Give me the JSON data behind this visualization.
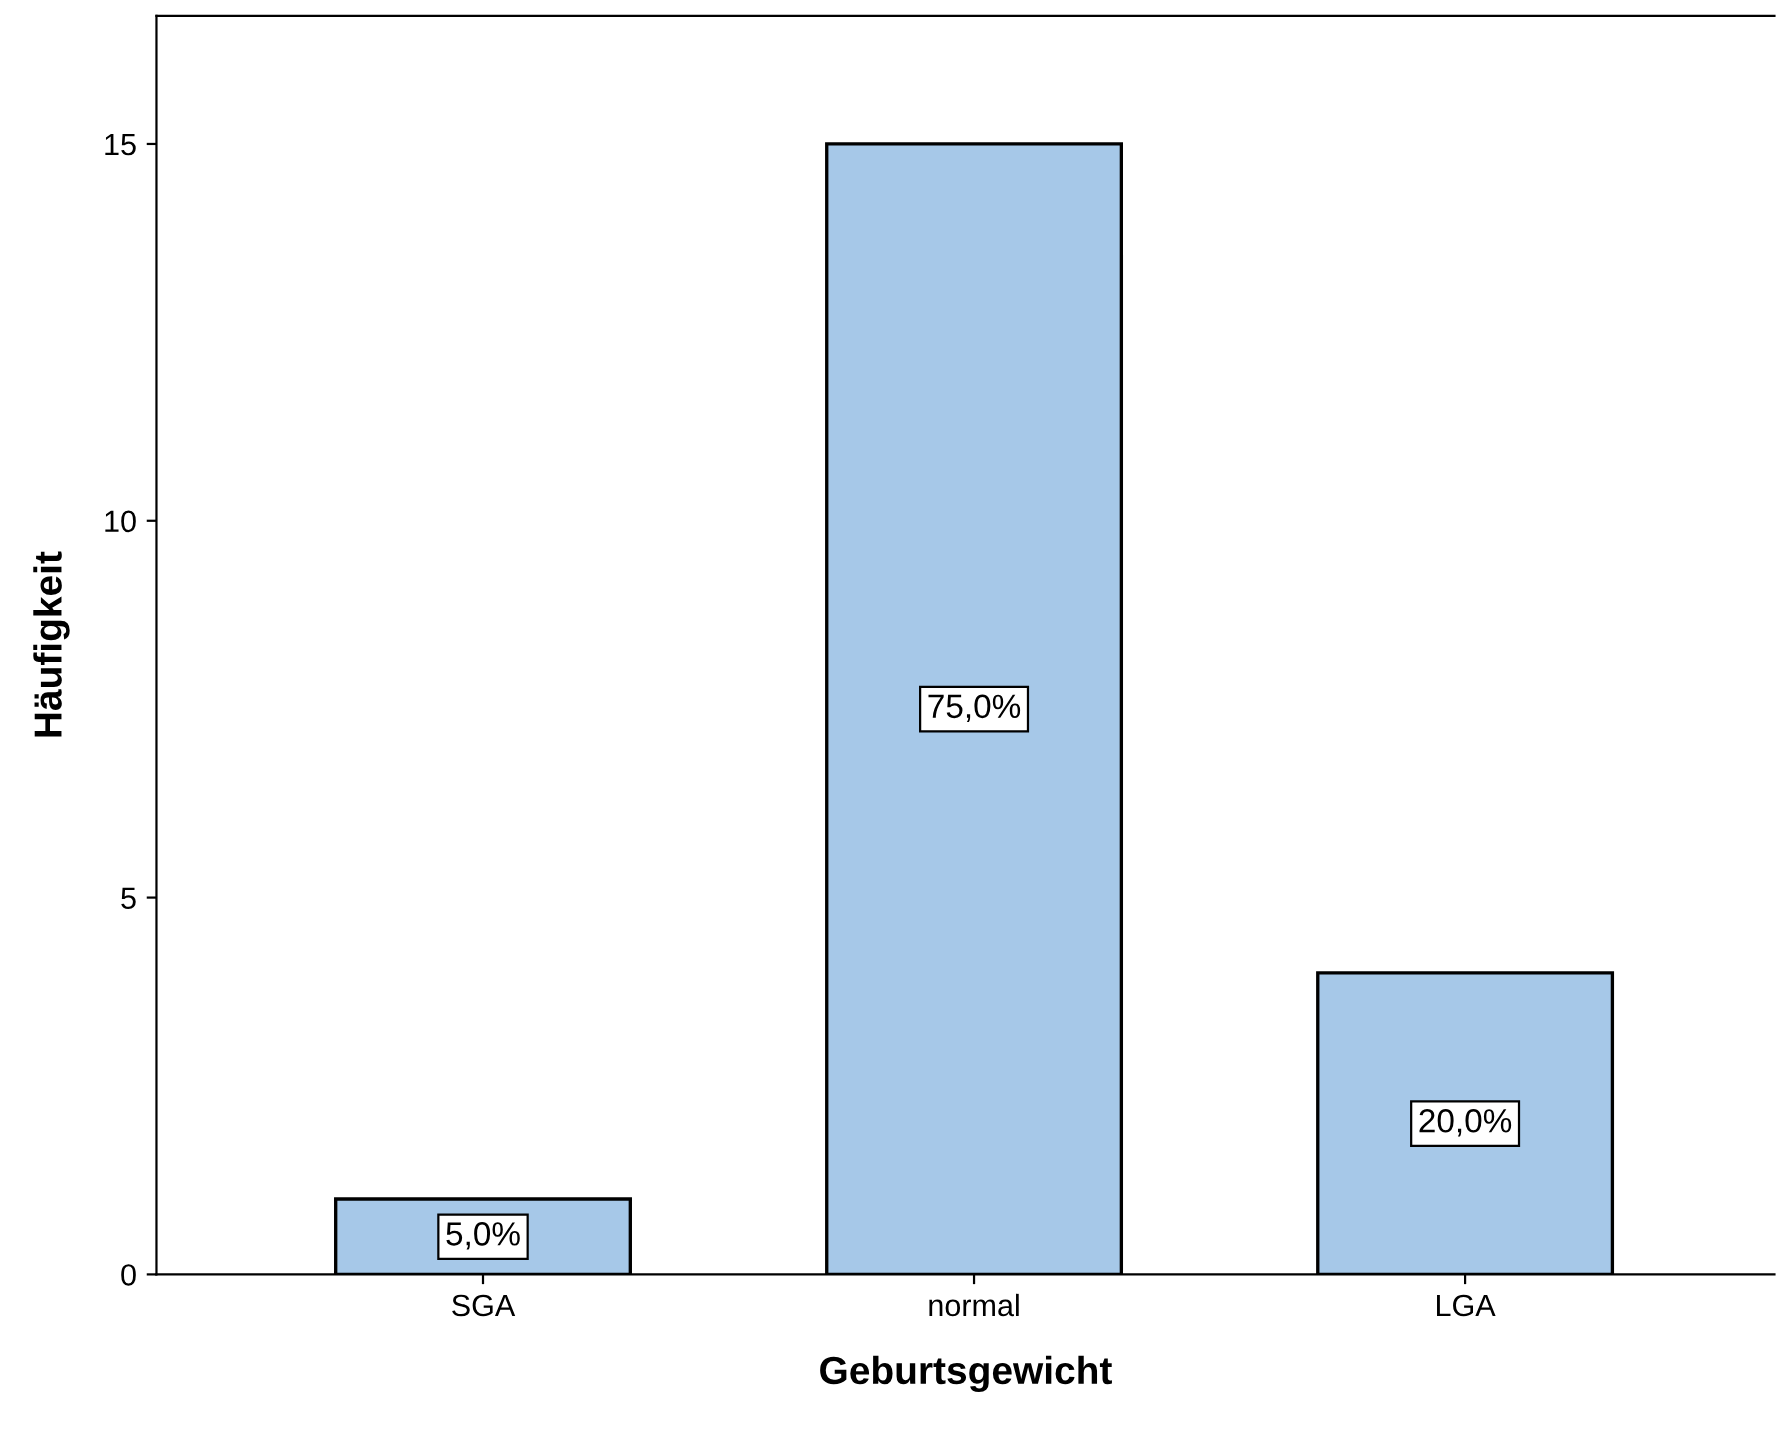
{
  "chart_data": {
    "type": "bar",
    "xlabel": "Geburtsgewicht",
    "ylabel": "Häufigkeit",
    "categories": [
      "SGA",
      "normal",
      "LGA"
    ],
    "values": [
      1,
      15,
      4
    ],
    "annotations": [
      "5,0%",
      "75,0%",
      "20,0%"
    ],
    "color": "#a6c8e8",
    "ylim": [
      0,
      16.7
    ],
    "yticks": [
      0,
      5,
      10,
      15
    ],
    "grid": false,
    "legend": false
  }
}
